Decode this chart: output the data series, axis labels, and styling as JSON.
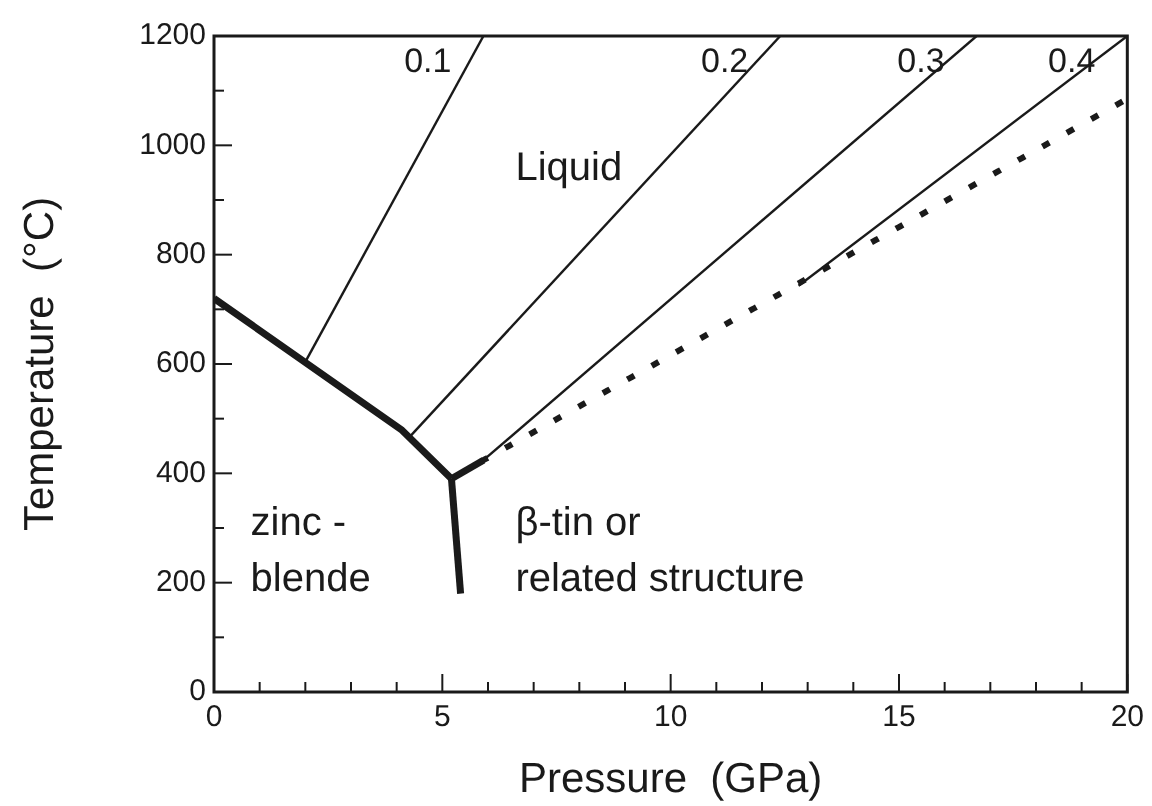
{
  "chart_data": {
    "type": "line",
    "xlabel": "Pressure  (GPa)",
    "ylabel": "Temperature  (°C)",
    "xlim": [
      0,
      20
    ],
    "ylim": [
      0,
      1200
    ],
    "xticks": [
      0,
      {
        "value": 1,
        "label": null
      },
      {
        "value": 2,
        "label": null
      },
      {
        "value": 3,
        "label": null
      },
      {
        "value": 4,
        "label": null
      },
      5,
      {
        "value": 6,
        "label": null
      },
      {
        "value": 7,
        "label": null
      },
      {
        "value": 8,
        "label": null
      },
      {
        "value": 9,
        "label": null
      },
      10,
      {
        "value": 11,
        "label": null
      },
      {
        "value": 12,
        "label": null
      },
      {
        "value": 13,
        "label": null
      },
      {
        "value": 14,
        "label": null
      },
      15,
      {
        "value": 16,
        "label": null
      },
      {
        "value": 17,
        "label": null
      },
      {
        "value": 18,
        "label": null
      },
      {
        "value": 19,
        "label": null
      },
      20
    ],
    "yticks": [
      0,
      {
        "value": 100,
        "label": null
      },
      200,
      {
        "value": 300,
        "label": null
      },
      400,
      {
        "value": 500,
        "label": null
      },
      600,
      {
        "value": 700,
        "label": null
      },
      800,
      {
        "value": 900,
        "label": null
      },
      1000,
      {
        "value": 1100,
        "label": null
      },
      1200
    ],
    "grid": false,
    "legend": false,
    "marker": "none",
    "series": [
      {
        "color": "#1a1a1a",
        "x": [
          0,
          4.1,
          5.2
        ],
        "values": [
          720,
          480,
          390
        ]
      },
      {
        "color": "#1a1a1a",
        "x": [
          5.2,
          5.4
        ],
        "values": [
          390,
          180
        ]
      },
      {
        "color": "#1a1a1a",
        "x": [
          5.2,
          5.9
        ],
        "values": [
          390,
          424
        ]
      },
      {
        "color": "#1a1a1a",
        "x": [
          5.9,
          20
        ],
        "values": [
          424,
          1085
        ],
        "line_style": "dotted"
      },
      {
        "name": "0.1",
        "color": "#1a1a1a",
        "x": [
          2.0,
          5.9
        ],
        "values": [
          604,
          1200
        ]
      },
      {
        "name": "0.2",
        "color": "#1a1a1a",
        "x": [
          4.3,
          12.4
        ],
        "values": [
          468,
          1200
        ]
      },
      {
        "name": "0.3",
        "color": "#1a1a1a",
        "x": [
          5.9,
          16.7
        ],
        "values": [
          424,
          1200
        ]
      },
      {
        "name": "0.4",
        "color": "#1a1a1a",
        "x": [
          12.8,
          20
        ],
        "values": [
          743,
          1200
        ]
      }
    ],
    "annotations": [
      "Liquid",
      "zinc -\nblende",
      "β-tin or\nrelated structure"
    ]
  }
}
